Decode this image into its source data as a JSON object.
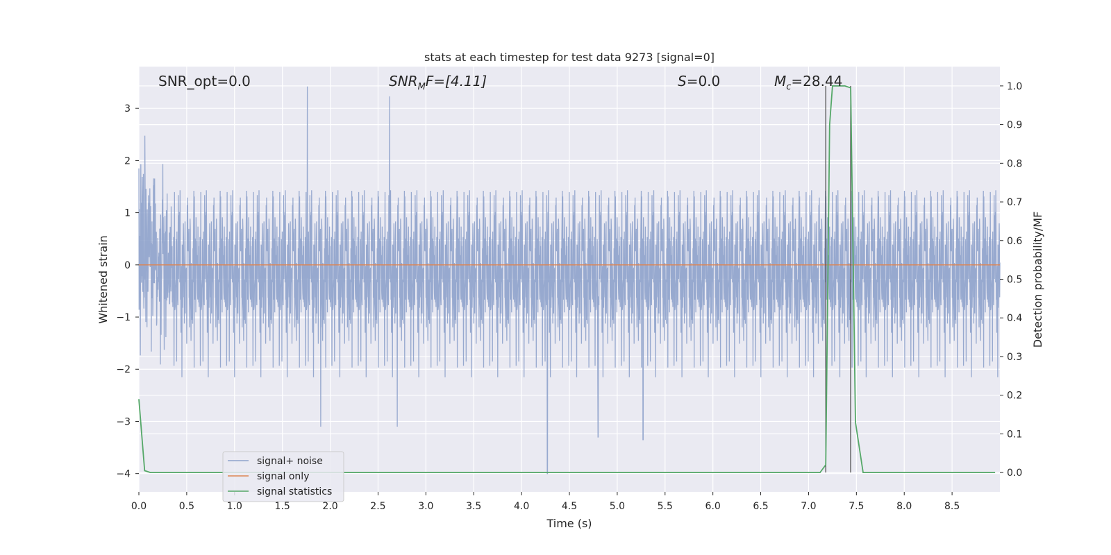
{
  "chart_data": {
    "type": "line",
    "title": "stats at each timestep for test data 9273 [signal=0]",
    "xlabel": "Time (s)",
    "ylabel_left": "Whitened strain",
    "ylabel_right": "Detection probability/MF",
    "xlim": [
      0.0,
      9.0
    ],
    "ylim_left": [
      -4.35,
      3.8
    ],
    "ylim_right": [
      -0.05,
      1.05
    ],
    "xticks": [
      "0.0",
      "0.5",
      "1.0",
      "1.5",
      "2.0",
      "2.5",
      "3.0",
      "3.5",
      "4.0",
      "4.5",
      "5.0",
      "5.5",
      "6.0",
      "6.5",
      "7.0",
      "7.5",
      "8.0",
      "8.5"
    ],
    "yticks_left": [
      "3",
      "2",
      "1",
      "0",
      "−1",
      "−2",
      "−3",
      "−4"
    ],
    "yticks_right": [
      "1.0",
      "0.9",
      "0.8",
      "0.7",
      "0.6",
      "0.5",
      "0.4",
      "0.3",
      "0.2",
      "0.1",
      "0.0"
    ],
    "grid": true,
    "legend_position": "lower-left",
    "annotations": {
      "snr_opt": "SNR_opt=0.0",
      "snr_mf_prefix": "SNR",
      "snr_mf_sub": "M",
      "snr_mf_suffix": "F=[4.11]",
      "s_var": "S",
      "s_value": "=0.0",
      "mc_var": "M",
      "mc_sub": "c",
      "mc_value": "=28.44"
    },
    "vlines_x": [
      7.18,
      7.44
    ],
    "series": [
      {
        "name": "signal+ noise",
        "axis": "left",
        "color": "#8ea2cb",
        "description": "whitened strain noise",
        "envelope_peaks": [
          {
            "x": 1.76,
            "y": 3.42
          },
          {
            "x": 2.62,
            "y": 3.23
          },
          {
            "x": 4.27,
            "y": -4.0
          },
          {
            "x": 4.8,
            "y": -3.3
          },
          {
            "x": 5.27,
            "y": -3.35
          },
          {
            "x": 2.7,
            "y": -3.1
          },
          {
            "x": 1.9,
            "y": -3.1
          }
        ]
      },
      {
        "name": "signal only",
        "axis": "left",
        "color": "#dd8452",
        "x": [
          0.0,
          9.0
        ],
        "y": [
          0.0,
          0.0
        ]
      },
      {
        "name": "signal statistics",
        "axis": "right",
        "color": "#55a868",
        "x": [
          0.0,
          0.06,
          0.12,
          2.3,
          7.12,
          7.18,
          7.22,
          7.25,
          7.3,
          7.38,
          7.44,
          7.49,
          7.57,
          8.95
        ],
        "y": [
          0.19,
          0.005,
          0.0,
          0.0,
          0.0,
          0.02,
          0.9,
          1.0,
          1.0,
          1.0,
          0.995,
          0.13,
          0.0,
          0.0
        ]
      }
    ]
  }
}
